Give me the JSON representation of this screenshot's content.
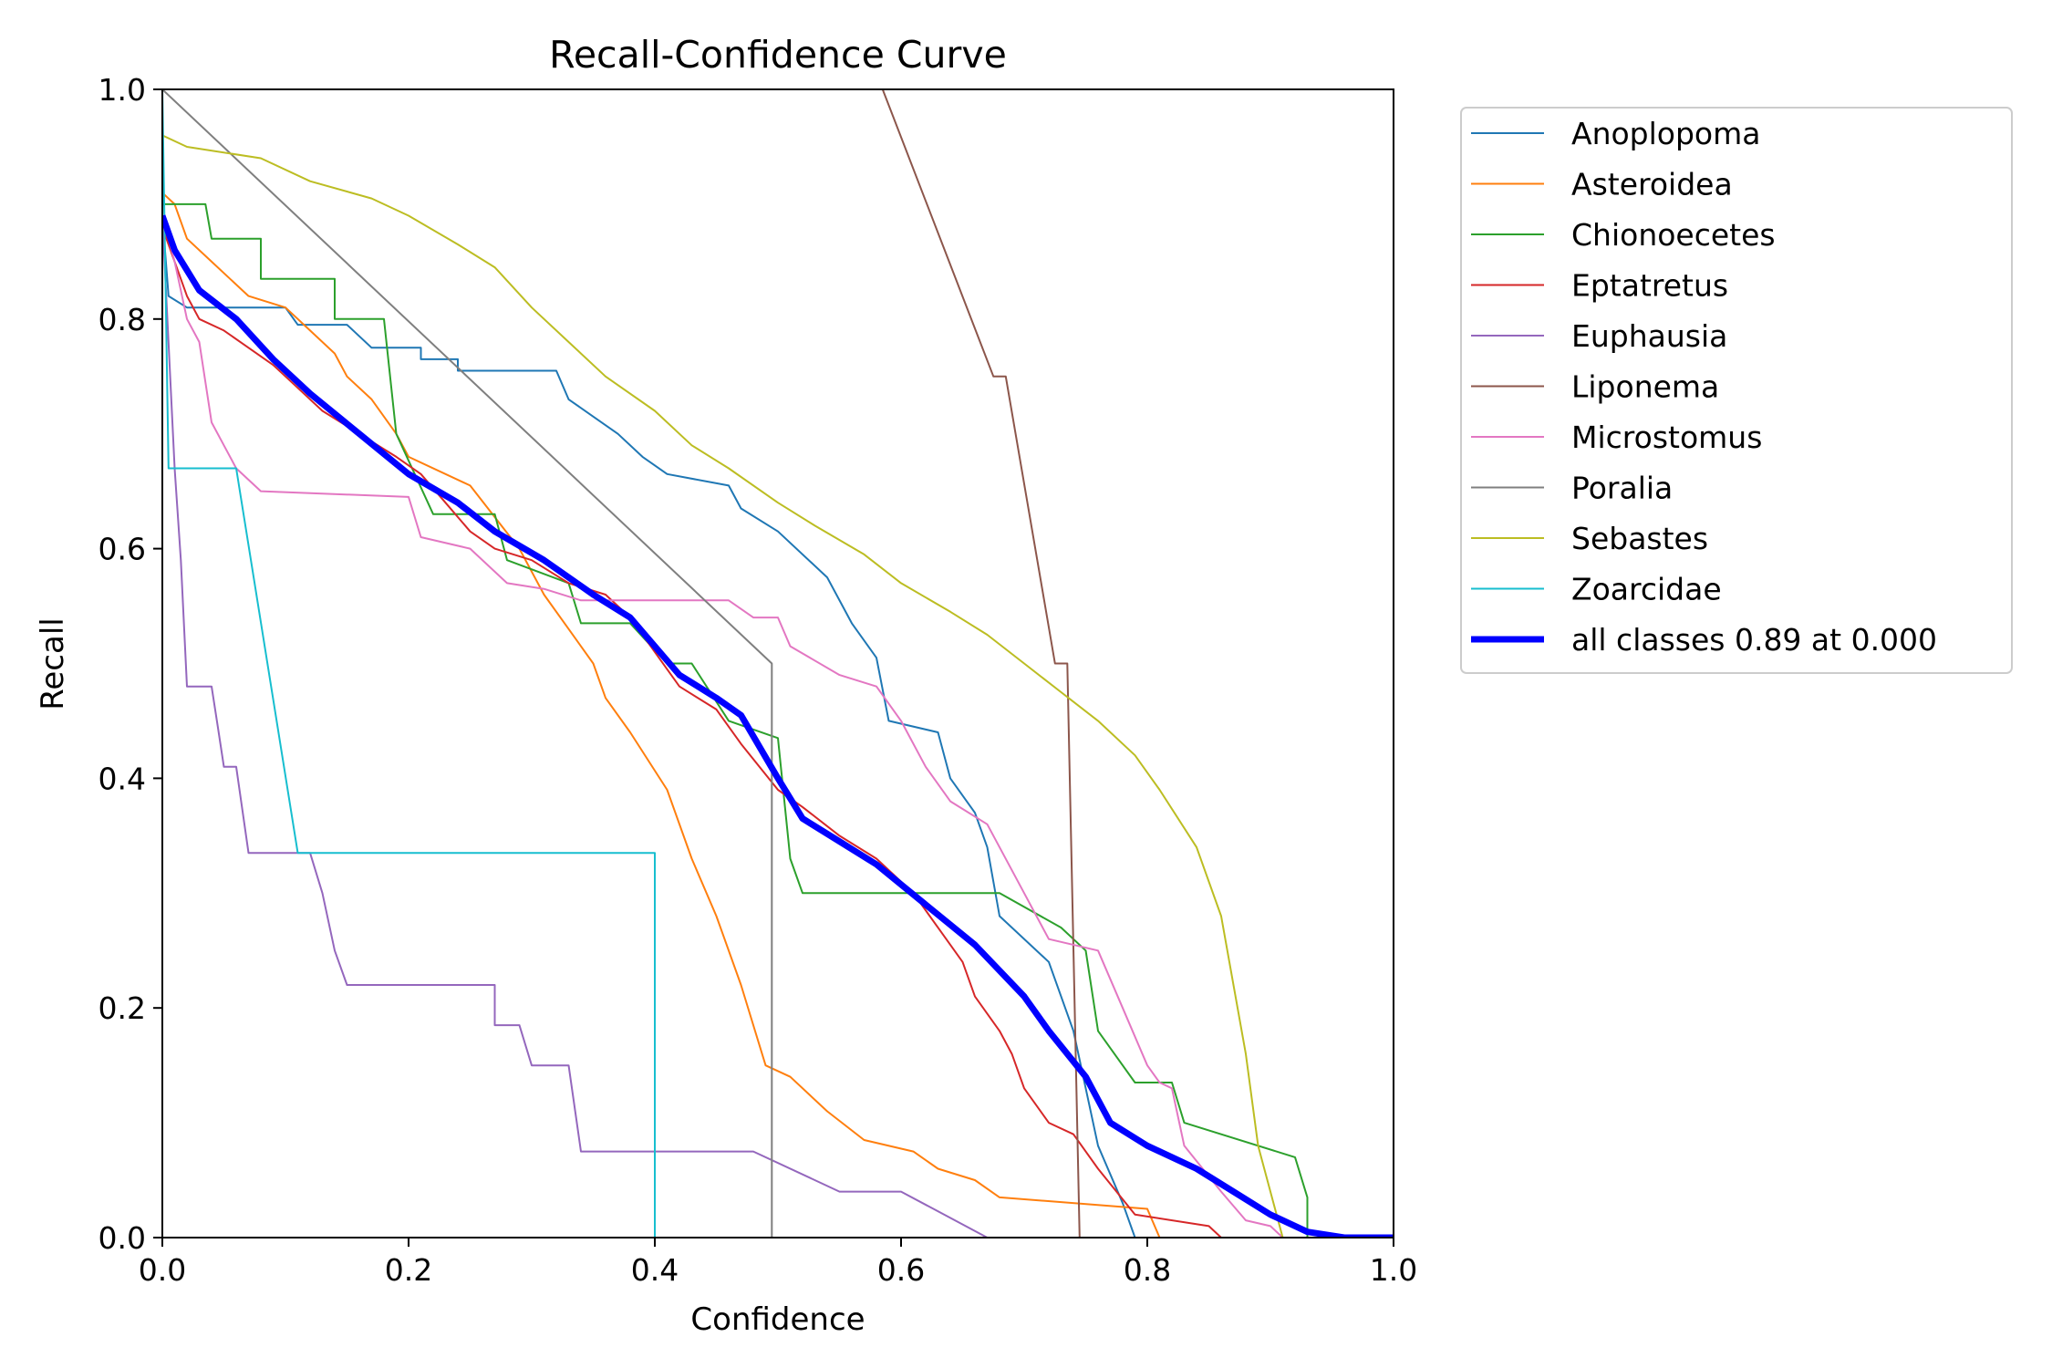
{
  "chart_data": {
    "type": "line",
    "title": "Recall-Confidence Curve",
    "xlabel": "Confidence",
    "ylabel": "Recall",
    "xlim": [
      0,
      1
    ],
    "ylim": [
      0,
      1
    ],
    "xticks": [
      "0.0",
      "0.2",
      "0.4",
      "0.6",
      "0.8",
      "1.0"
    ],
    "yticks": [
      "0.0",
      "0.2",
      "0.4",
      "0.6",
      "0.8",
      "1.0"
    ],
    "grid": false,
    "legend_position": "outside-right-top",
    "series": [
      {
        "name": "Anoplopoma",
        "color": "#1f77b4",
        "width": 2,
        "points": [
          [
            0,
            0.89
          ],
          [
            0.005,
            0.82
          ],
          [
            0.02,
            0.81
          ],
          [
            0.1,
            0.81
          ],
          [
            0.11,
            0.795
          ],
          [
            0.15,
            0.795
          ],
          [
            0.17,
            0.775
          ],
          [
            0.21,
            0.775
          ],
          [
            0.21,
            0.765
          ],
          [
            0.24,
            0.765
          ],
          [
            0.24,
            0.755
          ],
          [
            0.32,
            0.755
          ],
          [
            0.33,
            0.73
          ],
          [
            0.35,
            0.715
          ],
          [
            0.37,
            0.7
          ],
          [
            0.39,
            0.68
          ],
          [
            0.41,
            0.665
          ],
          [
            0.46,
            0.655
          ],
          [
            0.47,
            0.635
          ],
          [
            0.5,
            0.615
          ],
          [
            0.54,
            0.575
          ],
          [
            0.56,
            0.535
          ],
          [
            0.58,
            0.505
          ],
          [
            0.59,
            0.45
          ],
          [
            0.63,
            0.44
          ],
          [
            0.64,
            0.4
          ],
          [
            0.66,
            0.37
          ],
          [
            0.67,
            0.34
          ],
          [
            0.68,
            0.28
          ],
          [
            0.72,
            0.24
          ],
          [
            0.74,
            0.18
          ],
          [
            0.76,
            0.08
          ],
          [
            0.78,
            0.03
          ],
          [
            0.79,
            0
          ],
          [
            1,
            0
          ]
        ]
      },
      {
        "name": "Asteroidea",
        "color": "#ff7f0e",
        "width": 2,
        "points": [
          [
            0,
            0.91
          ],
          [
            0.01,
            0.9
          ],
          [
            0.02,
            0.87
          ],
          [
            0.04,
            0.85
          ],
          [
            0.07,
            0.82
          ],
          [
            0.1,
            0.81
          ],
          [
            0.12,
            0.79
          ],
          [
            0.14,
            0.77
          ],
          [
            0.15,
            0.75
          ],
          [
            0.17,
            0.73
          ],
          [
            0.19,
            0.7
          ],
          [
            0.2,
            0.68
          ],
          [
            0.25,
            0.655
          ],
          [
            0.29,
            0.6
          ],
          [
            0.31,
            0.56
          ],
          [
            0.33,
            0.53
          ],
          [
            0.35,
            0.5
          ],
          [
            0.36,
            0.47
          ],
          [
            0.38,
            0.44
          ],
          [
            0.41,
            0.39
          ],
          [
            0.43,
            0.33
          ],
          [
            0.45,
            0.28
          ],
          [
            0.47,
            0.22
          ],
          [
            0.49,
            0.15
          ],
          [
            0.51,
            0.14
          ],
          [
            0.54,
            0.11
          ],
          [
            0.57,
            0.085
          ],
          [
            0.61,
            0.075
          ],
          [
            0.63,
            0.06
          ],
          [
            0.66,
            0.05
          ],
          [
            0.68,
            0.035
          ],
          [
            0.8,
            0.025
          ],
          [
            0.81,
            0
          ],
          [
            1,
            0
          ]
        ]
      },
      {
        "name": "Chionoecetes",
        "color": "#2ca02c",
        "width": 2,
        "points": [
          [
            0,
            0.9
          ],
          [
            0.035,
            0.9
          ],
          [
            0.04,
            0.87
          ],
          [
            0.08,
            0.87
          ],
          [
            0.08,
            0.835
          ],
          [
            0.14,
            0.835
          ],
          [
            0.14,
            0.8
          ],
          [
            0.18,
            0.8
          ],
          [
            0.19,
            0.7
          ],
          [
            0.22,
            0.63
          ],
          [
            0.27,
            0.63
          ],
          [
            0.28,
            0.59
          ],
          [
            0.33,
            0.57
          ],
          [
            0.34,
            0.535
          ],
          [
            0.38,
            0.535
          ],
          [
            0.41,
            0.5
          ],
          [
            0.43,
            0.5
          ],
          [
            0.46,
            0.45
          ],
          [
            0.5,
            0.435
          ],
          [
            0.51,
            0.33
          ],
          [
            0.52,
            0.3
          ],
          [
            0.68,
            0.3
          ],
          [
            0.73,
            0.27
          ],
          [
            0.75,
            0.25
          ],
          [
            0.76,
            0.18
          ],
          [
            0.77,
            0.165
          ],
          [
            0.79,
            0.135
          ],
          [
            0.82,
            0.135
          ],
          [
            0.83,
            0.1
          ],
          [
            0.92,
            0.07
          ],
          [
            0.93,
            0.035
          ],
          [
            0.93,
            0
          ],
          [
            1,
            0
          ]
        ]
      },
      {
        "name": "Eptatretus",
        "color": "#d62728",
        "width": 2,
        "points": [
          [
            0,
            0.88
          ],
          [
            0.01,
            0.85
          ],
          [
            0.02,
            0.82
          ],
          [
            0.03,
            0.8
          ],
          [
            0.05,
            0.79
          ],
          [
            0.07,
            0.775
          ],
          [
            0.09,
            0.76
          ],
          [
            0.11,
            0.74
          ],
          [
            0.13,
            0.72
          ],
          [
            0.16,
            0.7
          ],
          [
            0.19,
            0.68
          ],
          [
            0.21,
            0.665
          ],
          [
            0.23,
            0.64
          ],
          [
            0.25,
            0.615
          ],
          [
            0.27,
            0.6
          ],
          [
            0.3,
            0.59
          ],
          [
            0.33,
            0.57
          ],
          [
            0.36,
            0.56
          ],
          [
            0.38,
            0.54
          ],
          [
            0.4,
            0.51
          ],
          [
            0.42,
            0.48
          ],
          [
            0.45,
            0.46
          ],
          [
            0.47,
            0.43
          ],
          [
            0.5,
            0.39
          ],
          [
            0.52,
            0.375
          ],
          [
            0.55,
            0.35
          ],
          [
            0.58,
            0.33
          ],
          [
            0.61,
            0.3
          ],
          [
            0.63,
            0.27
          ],
          [
            0.65,
            0.24
          ],
          [
            0.66,
            0.21
          ],
          [
            0.68,
            0.18
          ],
          [
            0.69,
            0.16
          ],
          [
            0.7,
            0.13
          ],
          [
            0.72,
            0.1
          ],
          [
            0.74,
            0.09
          ],
          [
            0.76,
            0.06
          ],
          [
            0.79,
            0.02
          ],
          [
            0.85,
            0.01
          ],
          [
            0.86,
            0
          ],
          [
            1,
            0
          ]
        ]
      },
      {
        "name": "Euphausia",
        "color": "#9467bd",
        "width": 2,
        "points": [
          [
            0,
            0.89
          ],
          [
            0.01,
            0.67
          ],
          [
            0.015,
            0.59
          ],
          [
            0.02,
            0.48
          ],
          [
            0.04,
            0.48
          ],
          [
            0.045,
            0.445
          ],
          [
            0.05,
            0.41
          ],
          [
            0.06,
            0.41
          ],
          [
            0.07,
            0.335
          ],
          [
            0.12,
            0.335
          ],
          [
            0.13,
            0.3
          ],
          [
            0.14,
            0.25
          ],
          [
            0.15,
            0.22
          ],
          [
            0.27,
            0.22
          ],
          [
            0.27,
            0.185
          ],
          [
            0.29,
            0.185
          ],
          [
            0.3,
            0.15
          ],
          [
            0.33,
            0.15
          ],
          [
            0.34,
            0.075
          ],
          [
            0.48,
            0.075
          ],
          [
            0.55,
            0.04
          ],
          [
            0.6,
            0.04
          ],
          [
            0.67,
            0
          ],
          [
            1,
            0
          ]
        ]
      },
      {
        "name": "Liponema",
        "color": "#8c564b",
        "width": 2,
        "points": [
          [
            0.585,
            1.0
          ],
          [
            0.675,
            0.75
          ],
          [
            0.685,
            0.75
          ],
          [
            0.725,
            0.5
          ],
          [
            0.735,
            0.5
          ],
          [
            0.745,
            0
          ],
          [
            1,
            0
          ]
        ]
      },
      {
        "name": "Microstomus",
        "color": "#e377c2",
        "width": 2,
        "points": [
          [
            0,
            0.89
          ],
          [
            0.01,
            0.85
          ],
          [
            0.02,
            0.8
          ],
          [
            0.03,
            0.78
          ],
          [
            0.04,
            0.71
          ],
          [
            0.05,
            0.69
          ],
          [
            0.06,
            0.67
          ],
          [
            0.08,
            0.65
          ],
          [
            0.2,
            0.645
          ],
          [
            0.21,
            0.61
          ],
          [
            0.25,
            0.6
          ],
          [
            0.28,
            0.57
          ],
          [
            0.31,
            0.565
          ],
          [
            0.34,
            0.555
          ],
          [
            0.46,
            0.555
          ],
          [
            0.48,
            0.54
          ],
          [
            0.5,
            0.54
          ],
          [
            0.51,
            0.515
          ],
          [
            0.55,
            0.49
          ],
          [
            0.58,
            0.48
          ],
          [
            0.6,
            0.45
          ],
          [
            0.62,
            0.41
          ],
          [
            0.64,
            0.38
          ],
          [
            0.67,
            0.36
          ],
          [
            0.7,
            0.3
          ],
          [
            0.72,
            0.26
          ],
          [
            0.76,
            0.25
          ],
          [
            0.78,
            0.2
          ],
          [
            0.8,
            0.15
          ],
          [
            0.81,
            0.135
          ],
          [
            0.82,
            0.13
          ],
          [
            0.83,
            0.08
          ],
          [
            0.86,
            0.04
          ],
          [
            0.88,
            0.015
          ],
          [
            0.9,
            0.01
          ],
          [
            0.91,
            0
          ],
          [
            1,
            0
          ]
        ]
      },
      {
        "name": "Poralia",
        "color": "#7f7f7f",
        "width": 2,
        "points": [
          [
            0,
            1.0
          ],
          [
            0.495,
            0.5
          ],
          [
            0.495,
            0
          ],
          [
            1,
            0
          ]
        ]
      },
      {
        "name": "Sebastes",
        "color": "#bcbd22",
        "width": 2,
        "points": [
          [
            0,
            0.96
          ],
          [
            0.02,
            0.95
          ],
          [
            0.08,
            0.94
          ],
          [
            0.12,
            0.92
          ],
          [
            0.17,
            0.905
          ],
          [
            0.2,
            0.89
          ],
          [
            0.24,
            0.865
          ],
          [
            0.27,
            0.845
          ],
          [
            0.3,
            0.81
          ],
          [
            0.33,
            0.78
          ],
          [
            0.36,
            0.75
          ],
          [
            0.4,
            0.72
          ],
          [
            0.43,
            0.69
          ],
          [
            0.46,
            0.67
          ],
          [
            0.5,
            0.64
          ],
          [
            0.53,
            0.62
          ],
          [
            0.57,
            0.595
          ],
          [
            0.6,
            0.57
          ],
          [
            0.64,
            0.545
          ],
          [
            0.67,
            0.525
          ],
          [
            0.7,
            0.5
          ],
          [
            0.73,
            0.475
          ],
          [
            0.76,
            0.45
          ],
          [
            0.79,
            0.42
          ],
          [
            0.81,
            0.39
          ],
          [
            0.84,
            0.34
          ],
          [
            0.86,
            0.28
          ],
          [
            0.88,
            0.16
          ],
          [
            0.89,
            0.08
          ],
          [
            0.9,
            0.04
          ],
          [
            0.91,
            0
          ],
          [
            1,
            0
          ]
        ]
      },
      {
        "name": "Zoarcidae",
        "color": "#17becf",
        "width": 2,
        "points": [
          [
            0,
            1.0
          ],
          [
            0.005,
            0.67
          ],
          [
            0.06,
            0.67
          ],
          [
            0.11,
            0.335
          ],
          [
            0.4,
            0.335
          ],
          [
            0.4,
            0
          ],
          [
            1,
            0
          ]
        ]
      },
      {
        "name": "all classes 0.89 at 0.000",
        "color": "#0000ff",
        "width": 7,
        "points": [
          [
            0,
            0.89
          ],
          [
            0.01,
            0.86
          ],
          [
            0.03,
            0.825
          ],
          [
            0.06,
            0.8
          ],
          [
            0.09,
            0.765
          ],
          [
            0.12,
            0.735
          ],
          [
            0.16,
            0.7
          ],
          [
            0.2,
            0.665
          ],
          [
            0.24,
            0.64
          ],
          [
            0.27,
            0.615
          ],
          [
            0.31,
            0.59
          ],
          [
            0.35,
            0.56
          ],
          [
            0.38,
            0.54
          ],
          [
            0.42,
            0.49
          ],
          [
            0.45,
            0.47
          ],
          [
            0.47,
            0.455
          ],
          [
            0.5,
            0.4
          ],
          [
            0.52,
            0.365
          ],
          [
            0.55,
            0.345
          ],
          [
            0.58,
            0.325
          ],
          [
            0.62,
            0.29
          ],
          [
            0.66,
            0.255
          ],
          [
            0.7,
            0.21
          ],
          [
            0.72,
            0.18
          ],
          [
            0.75,
            0.14
          ],
          [
            0.77,
            0.1
          ],
          [
            0.8,
            0.08
          ],
          [
            0.84,
            0.06
          ],
          [
            0.87,
            0.04
          ],
          [
            0.9,
            0.02
          ],
          [
            0.93,
            0.005
          ],
          [
            0.96,
            0
          ],
          [
            1,
            0
          ]
        ]
      }
    ]
  }
}
